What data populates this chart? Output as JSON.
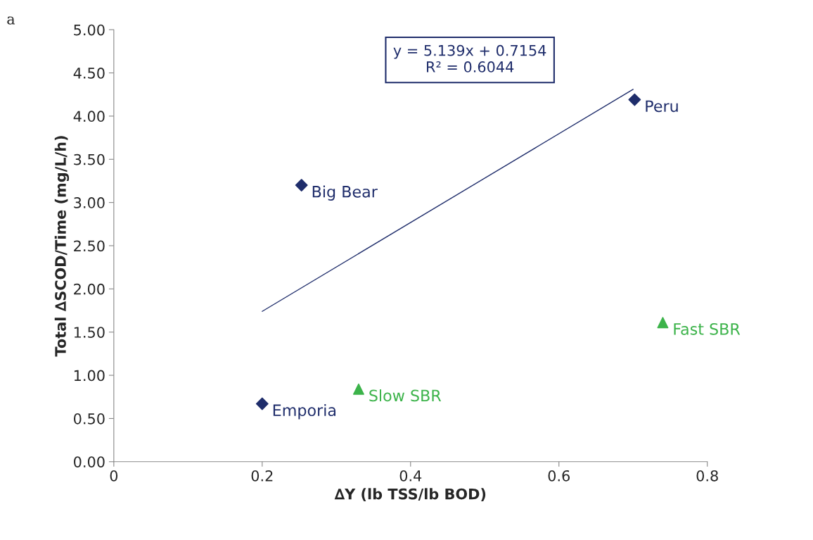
{
  "chart_data": {
    "type": "scatter",
    "xlabel": "∆Y (lb TSS/lb BOD)",
    "ylabel": "Total ∆SCOD/Time (mg/L/h)",
    "xlim": [
      0,
      0.8
    ],
    "ylim": [
      0,
      5
    ],
    "xticks": [
      0,
      0.2,
      0.4,
      0.6,
      0.8
    ],
    "yticks": [
      {
        "value": 0,
        "label": "0.00"
      },
      {
        "value": 0.5,
        "label": "0.50"
      },
      {
        "value": 1,
        "label": "1.00"
      },
      {
        "value": 1.5,
        "label": "1.50"
      },
      {
        "value": 2,
        "label": "2.00"
      },
      {
        "value": 2.5,
        "label": "2.50"
      },
      {
        "value": 3,
        "label": "3.00"
      },
      {
        "value": 3.5,
        "label": "3.50"
      },
      {
        "value": 4,
        "label": "4.00"
      },
      {
        "value": 4.5,
        "label": "4.50"
      },
      {
        "value": 5,
        "label": "5.00"
      }
    ],
    "grid": false,
    "legend": false,
    "series": [
      {
        "marker": "diamond",
        "color": "#1f2d6b",
        "x": [
          0.2,
          0.253,
          0.702
        ],
        "values": [
          0.67,
          3.2,
          4.19
        ]
      },
      {
        "marker": "triangle",
        "color": "#3cb34a",
        "x": [
          0.33,
          0.74
        ],
        "values": [
          0.84,
          1.61
        ]
      },
      {
        "type": "line",
        "marker": "none",
        "color": "#1f2d6b",
        "x": [
          0.2,
          0.7
        ],
        "values": [
          1.74,
          4.31
        ]
      }
    ],
    "annotations": [
      "a",
      "y = 5.139x + 0.7154\nR² = 0.6044",
      {
        "text": "Emporia",
        "x": 0.2,
        "y": 0.67
      },
      {
        "text": "Big Bear",
        "x": 0.253,
        "y": 3.2
      },
      {
        "text": "Peru",
        "x": 0.702,
        "y": 4.19
      },
      {
        "text": "Slow SBR",
        "x": 0.33,
        "y": 0.84
      },
      {
        "text": "Fast SBR",
        "x": 0.74,
        "y": 1.61
      }
    ]
  }
}
